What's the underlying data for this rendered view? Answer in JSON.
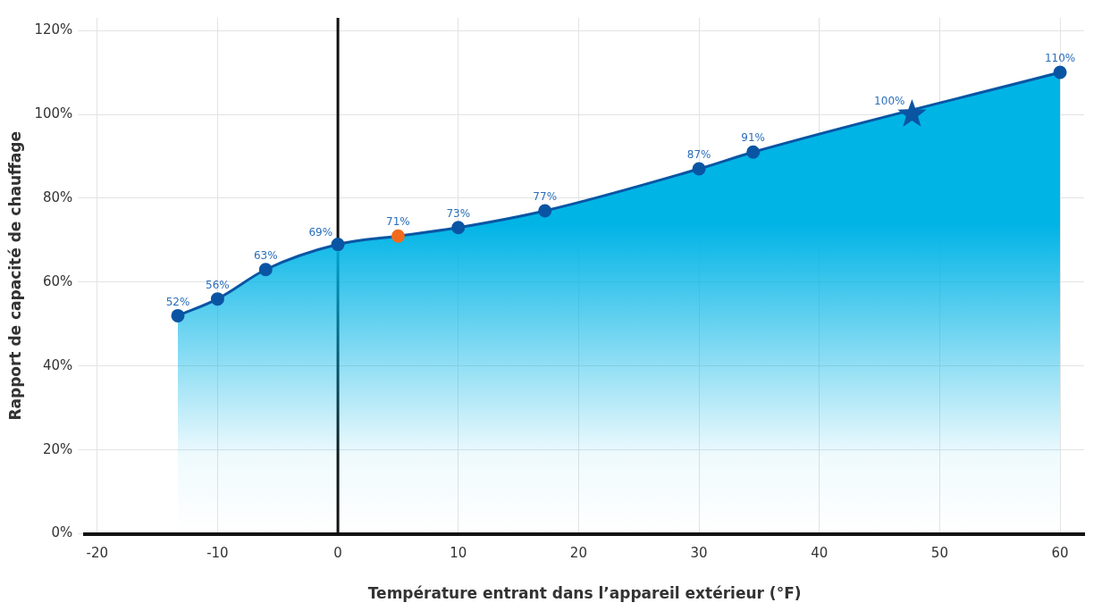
{
  "chart_data": {
    "type": "area",
    "xlabel": "Température entrant dans l’appareil extérieur (°F)",
    "ylabel": "Rapport de capacité de chauffage",
    "xlim": [
      -21,
      62
    ],
    "xticks": [
      -20,
      -10,
      0,
      10,
      20,
      30,
      40,
      50,
      60
    ],
    "ylim": [
      0,
      123
    ],
    "yticks": [
      {
        "value": 0,
        "label": "0%"
      },
      {
        "value": 20,
        "label": "20%"
      },
      {
        "value": 40,
        "label": "40%"
      },
      {
        "value": 60,
        "label": "60%"
      },
      {
        "value": 80,
        "label": "80%"
      },
      {
        "value": 100,
        "label": "100%"
      },
      {
        "value": 120,
        "label": "120%"
      }
    ],
    "grid": true,
    "marker": "circle",
    "series": [
      {
        "color": "#00b4e6",
        "x": [
          -13.3,
          -10,
          -6,
          0,
          5,
          10,
          17.2,
          30,
          34.5,
          60
        ],
        "values": [
          52,
          56,
          63,
          69,
          71,
          73,
          77,
          87,
          91,
          110
        ],
        "colors": [
          "#0a55a3",
          "#0a55a3",
          "#0a55a3",
          "#0a55a3",
          "#f26b1d",
          "#0a55a3",
          "#0a55a3",
          "#0a55a3",
          "#0a55a3",
          "#0a55a3"
        ],
        "value_labels": [
          "52%",
          "56%",
          "63%",
          "69%",
          "71%",
          "73%",
          "77%",
          "87%",
          "91%",
          "110%"
        ]
      },
      {
        "type": "scatter",
        "marker": "star",
        "color": "#0a55a3",
        "x": [
          47.7
        ],
        "values": [
          100
        ],
        "value_labels": [
          "100%"
        ]
      }
    ],
    "ref_lines": [
      {
        "axis": "x",
        "value": 0,
        "color": "#111111"
      }
    ]
  }
}
